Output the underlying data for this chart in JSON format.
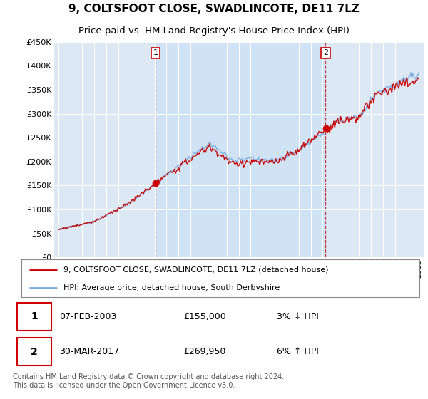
{
  "title": "9, COLTSFOOT CLOSE, SWADLINCOTE, DE11 7LZ",
  "subtitle": "Price paid vs. HM Land Registry's House Price Index (HPI)",
  "ylim": [
    0,
    450000
  ],
  "yticks": [
    0,
    50000,
    100000,
    150000,
    200000,
    250000,
    300000,
    350000,
    400000,
    450000
  ],
  "ytick_labels": [
    "£0",
    "£50K",
    "£100K",
    "£150K",
    "£200K",
    "£250K",
    "£300K",
    "£350K",
    "£400K",
    "£450K"
  ],
  "year_start": 1995,
  "year_end": 2025,
  "sale1_date": 2003.09,
  "sale1_price": 155000,
  "sale2_date": 2017.24,
  "sale2_price": 269950,
  "sale1_display": "07-FEB-2003",
  "sale1_amount": "£155,000",
  "sale1_hpi": "3% ↓ HPI",
  "sale2_display": "30-MAR-2017",
  "sale2_amount": "£269,950",
  "sale2_hpi": "6% ↑ HPI",
  "house_color": "#cc0000",
  "hpi_color": "#7aaadd",
  "background_color": "#dce9f5",
  "highlight_color": "#c8dff5",
  "legend_label_house": "9, COLTSFOOT CLOSE, SWADLINCOTE, DE11 7LZ (detached house)",
  "legend_label_hpi": "HPI: Average price, detached house, South Derbyshire",
  "footer": "Contains HM Land Registry data © Crown copyright and database right 2024.\nThis data is licensed under the Open Government Licence v3.0.",
  "title_fontsize": 11,
  "subtitle_fontsize": 9.5
}
